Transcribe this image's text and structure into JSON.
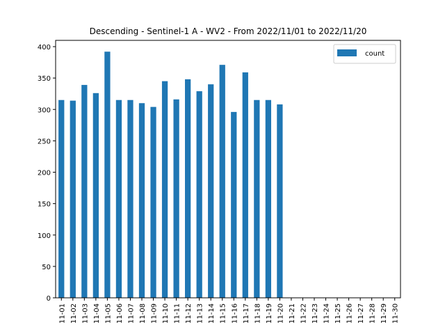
{
  "chart_data": {
    "type": "bar",
    "title": "Descending - Sentinel-1 A - WV2 - From 2022/11/01 to 2022/11/20",
    "xlabel": "",
    "ylabel": "",
    "categories": [
      "11-01",
      "11-02",
      "11-03",
      "11-04",
      "11-05",
      "11-06",
      "11-07",
      "11-08",
      "11-09",
      "11-10",
      "11-11",
      "11-12",
      "11-13",
      "11-14",
      "11-15",
      "11-16",
      "11-17",
      "11-18",
      "11-19",
      "11-20",
      "11-21",
      "11-22",
      "11-23",
      "11-24",
      "11-25",
      "11-26",
      "11-27",
      "11-28",
      "11-29",
      "11-30"
    ],
    "series": [
      {
        "name": "count",
        "color": "#1f77b4",
        "values": [
          315,
          314,
          339,
          326,
          392,
          315,
          315,
          310,
          304,
          345,
          316,
          348,
          329,
          340,
          371,
          296,
          359,
          315,
          315,
          308,
          0,
          0,
          0,
          0,
          0,
          0,
          0,
          0,
          0,
          0
        ]
      }
    ],
    "ylim": [
      0,
      410
    ],
    "yticks": [
      0,
      50,
      100,
      150,
      200,
      250,
      300,
      350,
      400
    ],
    "grid": false,
    "legend_position": "top-right"
  }
}
